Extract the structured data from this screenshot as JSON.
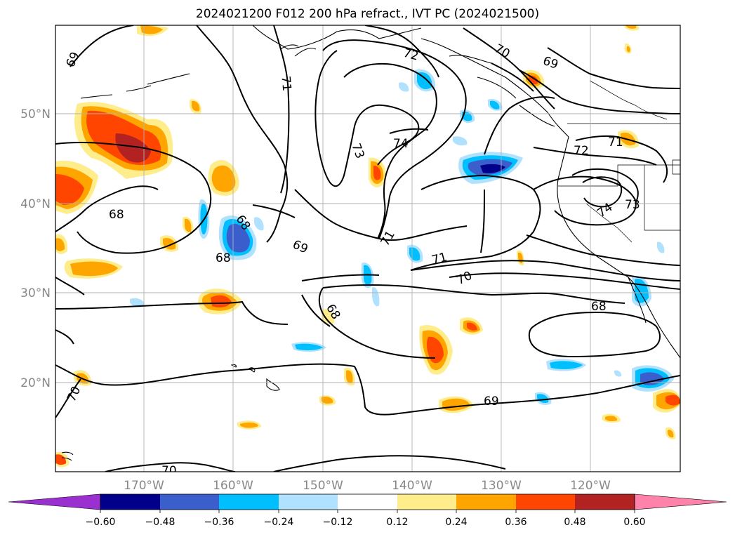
{
  "title": "2024021200 F012 200 hPa refract., IVT PC (2024021500)",
  "map": {
    "lat_labels": [
      "50°N",
      "40°N",
      "30°N",
      "20°N"
    ],
    "lon_labels": [
      "170°W",
      "160°W",
      "150°W",
      "140°W",
      "130°W",
      "120°W"
    ],
    "contour_labels": [
      "69",
      "71",
      "72",
      "70",
      "69",
      "73",
      "74",
      "68",
      "68",
      "69",
      "71",
      "70",
      "68",
      "71",
      "72",
      "74",
      "73",
      "68",
      "70",
      "69",
      "70"
    ]
  },
  "colorbar": {
    "colors": [
      "#9b30d0",
      "#00008b",
      "#3a5fcd",
      "#00bfff",
      "#b0e2ff",
      "#ffffff",
      "#ffec8b",
      "#ffa500",
      "#ff4500",
      "#b22222",
      "#ff82ab"
    ],
    "tick_labels": [
      "−0.60",
      "−0.48",
      "−0.36",
      "−0.24",
      "−0.12",
      "0.12",
      "0.24",
      "0.36",
      "0.48",
      "0.60"
    ]
  }
}
